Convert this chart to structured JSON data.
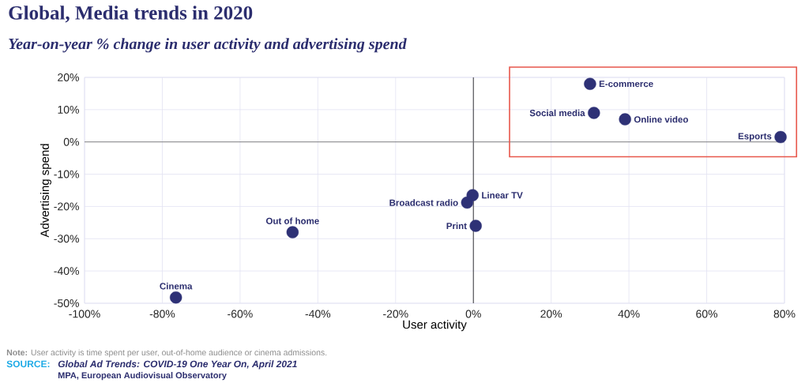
{
  "chart_data": {
    "type": "scatter",
    "title": "Global, Media trends in 2020",
    "subtitle": "Year-on-year % change in user activity and advertising spend",
    "xlabel": "User activity",
    "ylabel": "Advertising spend",
    "series": [
      {
        "color": "#2e3176",
        "x": [
          30,
          31,
          39,
          79,
          -0.2,
          -1.6,
          0.6,
          -46.5,
          -76.5
        ],
        "values": [
          18,
          9,
          7,
          1.5,
          -16.5,
          -18.8,
          -26,
          -28,
          -48.2
        ]
      }
    ],
    "annotations": [
      {
        "text": "E-commerce",
        "x": 30,
        "y": 18
      },
      {
        "text": "Social media",
        "x": 31,
        "y": 9
      },
      {
        "text": "Online video",
        "x": 39,
        "y": 7
      },
      {
        "text": "Esports",
        "x": 79,
        "y": 1.5
      },
      {
        "text": "Linear TV",
        "x": -0.2,
        "y": -16.5
      },
      {
        "text": "Broadcast radio",
        "x": -1.6,
        "y": -18.8
      },
      {
        "text": "Print",
        "x": 0.6,
        "y": -26
      },
      {
        "text": "Out of home",
        "x": -46.5,
        "y": -28
      },
      {
        "text": "Cinema",
        "x": -76.5,
        "y": -48.2
      },
      "**Note:** User activity is time spent per user, out-of-home audience or cinema admissions.",
      "SOURCE:",
      "Global Ad Trends: COVID-19 One Year On, April 2021",
      "MPA, European Audiovisual Observatory"
    ],
    "xlim": [
      -100,
      80
    ],
    "ylim": [
      -50,
      20
    ],
    "xticks": [
      {
        "value": -100,
        "label": "-100%"
      },
      {
        "value": -80,
        "label": "-80%"
      },
      {
        "value": -60,
        "label": "-60%"
      },
      {
        "value": -40,
        "label": "-40%"
      },
      {
        "value": -20,
        "label": "-20%"
      },
      {
        "value": 0,
        "label": "0%"
      },
      {
        "value": 20,
        "label": "20%"
      },
      {
        "value": 40,
        "label": "40%"
      },
      {
        "value": 60,
        "label": "60%"
      },
      {
        "value": 80,
        "label": "80%"
      }
    ],
    "yticks": [
      {
        "value": -50,
        "label": "-50%"
      },
      {
        "value": -40,
        "label": "-40%"
      },
      {
        "value": -30,
        "label": "-30%"
      },
      {
        "value": -20,
        "label": "-20%"
      },
      {
        "value": -10,
        "label": "-10%"
      },
      {
        "value": 0,
        "label": "0%"
      },
      {
        "value": 10,
        "label": "10%"
      },
      {
        "value": 20,
        "label": "20%"
      }
    ],
    "ref_lines": [
      {
        "axis": "x",
        "value": 0,
        "color": "#222222"
      },
      {
        "axis": "y",
        "value": 0,
        "color": "#777777"
      }
    ],
    "grid": true
  }
}
